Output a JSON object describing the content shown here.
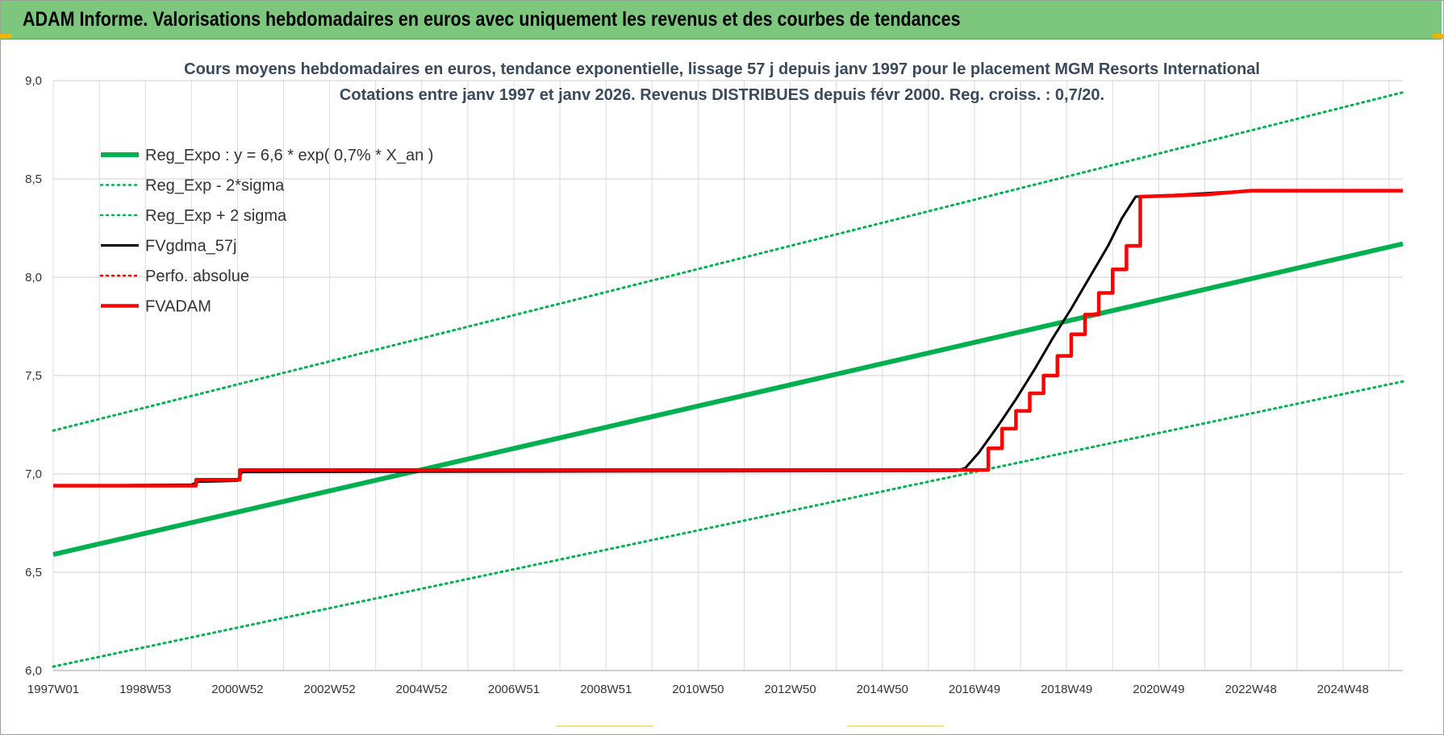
{
  "header": {
    "title": "ADAM Informe. Valorisations hebdomadaires en euros avec uniquement les revenus et des courbes de tendances"
  },
  "colors": {
    "banner": "#7dc67d",
    "reg": "#00b050",
    "fvgdma": "#000000",
    "fvadam": "#ff0000",
    "perfo": "#ff0000"
  },
  "chart_data": {
    "type": "line",
    "title": "Cours moyens hebdomadaires en euros, tendance exponentielle, lissage 57 j depuis janv 1997  pour le placement MGM Resorts International",
    "subtitle": "Cotations entre janv 1997 et janv 2026. Revenus DISTRIBUES depuis févr 2000. Reg. croiss. : 0,7/20.",
    "xlabel": "",
    "ylabel": "",
    "x_range": [
      1997.0,
      2026.3
    ],
    "x_ticks": [
      {
        "x": 1997.0,
        "label": "1997W01"
      },
      {
        "x": 1999.0,
        "label": "1998W53"
      },
      {
        "x": 2001.0,
        "label": "2000W52"
      },
      {
        "x": 2003.0,
        "label": "2002W52"
      },
      {
        "x": 2005.0,
        "label": "2004W52"
      },
      {
        "x": 2007.0,
        "label": "2006W51"
      },
      {
        "x": 2009.0,
        "label": "2008W51"
      },
      {
        "x": 2011.0,
        "label": "2010W50"
      },
      {
        "x": 2013.0,
        "label": "2012W50"
      },
      {
        "x": 2015.0,
        "label": "2014W50"
      },
      {
        "x": 2017.0,
        "label": "2016W49"
      },
      {
        "x": 2019.0,
        "label": "2018W49"
      },
      {
        "x": 2021.0,
        "label": "2020W49"
      },
      {
        "x": 2023.0,
        "label": "2022W48"
      },
      {
        "x": 2025.0,
        "label": "2024W48"
      }
    ],
    "ylim": [
      6.0,
      9.0
    ],
    "y_ticks": [
      {
        "y": 6.0,
        "label": "6,0"
      },
      {
        "y": 6.5,
        "label": "6,5"
      },
      {
        "y": 7.0,
        "label": "7,0"
      },
      {
        "y": 7.5,
        "label": "7,5"
      },
      {
        "y": 8.0,
        "label": "8,0"
      },
      {
        "y": 8.5,
        "label": "8,5"
      },
      {
        "y": 9.0,
        "label": "9,0"
      }
    ],
    "grid": true,
    "legend_position": "top-left",
    "series": [
      {
        "name": "Reg_Expo : y = 6,6 * exp( 0,7% *  X_an )",
        "style": "solid-thick",
        "color": "#00b050",
        "x": [
          1997.0,
          2026.3
        ],
        "y": [
          6.59,
          8.17
        ]
      },
      {
        "name": "Reg_Exp - 2*sigma",
        "style": "dotted",
        "color": "#00b050",
        "x": [
          1997.0,
          2026.3
        ],
        "y": [
          6.02,
          7.47
        ]
      },
      {
        "name": "Reg_Exp + 2 sigma",
        "style": "dotted",
        "color": "#00b050",
        "x": [
          1997.0,
          2026.3
        ],
        "y": [
          7.22,
          8.94
        ]
      },
      {
        "name": "FVgdma_57j",
        "style": "solid-thin",
        "color": "#000000",
        "x": [
          1997.0,
          2000.0,
          2000.15,
          2001.0,
          2001.1,
          2016.6,
          2016.8,
          2017.1,
          2017.5,
          2017.9,
          2018.3,
          2018.7,
          2019.1,
          2019.5,
          2019.9,
          2020.2,
          2020.5,
          2021.5,
          2023.0,
          2026.3
        ],
        "y": [
          6.94,
          6.945,
          6.96,
          6.965,
          7.01,
          7.015,
          7.03,
          7.11,
          7.24,
          7.38,
          7.53,
          7.69,
          7.84,
          8.0,
          8.16,
          8.3,
          8.41,
          8.42,
          8.44,
          8.44
        ]
      },
      {
        "name": "Perfo. absolue",
        "style": "dotted",
        "color": "#ff0000",
        "x": [],
        "y": []
      },
      {
        "name": "FVADAM",
        "style": "step",
        "color": "#ff0000",
        "x": [
          1997.0,
          2000.1,
          2000.1,
          2001.05,
          2001.05,
          2017.3,
          2017.3,
          2017.6,
          2017.6,
          2017.9,
          2017.9,
          2018.2,
          2018.2,
          2018.5,
          2018.5,
          2018.8,
          2018.8,
          2019.1,
          2019.1,
          2019.4,
          2019.4,
          2019.7,
          2019.7,
          2020.0,
          2020.0,
          2020.3,
          2020.3,
          2020.6,
          2020.6,
          2022.0,
          2023.0,
          2026.3
        ],
        "y": [
          6.94,
          6.94,
          6.97,
          6.97,
          7.02,
          7.02,
          7.13,
          7.13,
          7.23,
          7.23,
          7.32,
          7.32,
          7.41,
          7.41,
          7.5,
          7.5,
          7.6,
          7.6,
          7.71,
          7.71,
          7.81,
          7.81,
          7.92,
          7.92,
          8.04,
          8.04,
          8.16,
          8.16,
          8.41,
          8.42,
          8.44,
          8.44
        ]
      }
    ]
  }
}
